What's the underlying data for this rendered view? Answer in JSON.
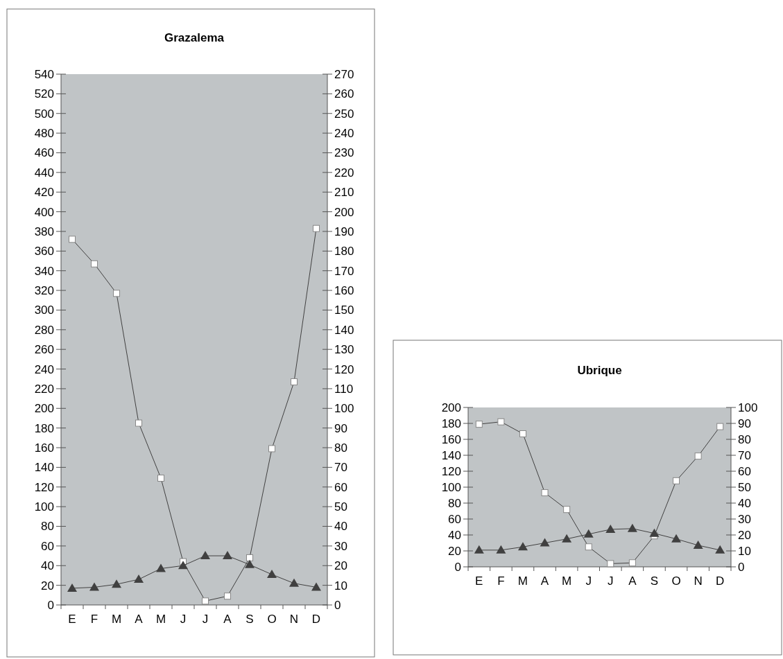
{
  "chart_data": [
    {
      "type": "line",
      "title": "Grazalema",
      "categories": [
        "E",
        "F",
        "M",
        "A",
        "M",
        "J",
        "J",
        "A",
        "S",
        "O",
        "N",
        "D"
      ],
      "series": [
        {
          "color": "#ffffff",
          "marker": "square",
          "values": [
            372,
            347,
            317,
            185,
            129,
            44,
            4,
            9,
            48,
            159,
            227,
            383
          ]
        },
        {
          "color": "#404040",
          "marker": "triangle",
          "axis": "y2",
          "values": [
            8.5,
            9,
            10.5,
            13,
            18.5,
            20,
            25,
            25,
            20.5,
            15.5,
            11,
            9
          ]
        }
      ],
      "ylim": [
        0,
        540
      ],
      "yticks": [
        0,
        20,
        40,
        60,
        80,
        100,
        120,
        140,
        160,
        180,
        200,
        220,
        240,
        260,
        280,
        300,
        320,
        340,
        360,
        380,
        400,
        420,
        440,
        460,
        480,
        500,
        520,
        540
      ],
      "y2lim": [
        0,
        270
      ],
      "y2ticks": [
        0,
        10,
        20,
        30,
        40,
        50,
        60,
        70,
        80,
        90,
        100,
        110,
        120,
        130,
        140,
        150,
        160,
        170,
        180,
        190,
        200,
        210,
        220,
        230,
        240,
        250,
        260,
        270
      ],
      "grid": false
    },
    {
      "type": "line",
      "title": "Ubrique",
      "categories": [
        "E",
        "F",
        "M",
        "A",
        "M",
        "J",
        "J",
        "A",
        "S",
        "O",
        "N",
        "D"
      ],
      "series": [
        {
          "color": "#ffffff",
          "marker": "square",
          "values": [
            179,
            182,
            167,
            93,
            72,
            25,
            4,
            5,
            39,
            108,
            139,
            176
          ]
        },
        {
          "color": "#404040",
          "marker": "triangle",
          "axis": "y2",
          "values": [
            10.5,
            10.5,
            12.5,
            15,
            17.5,
            20.5,
            23.5,
            24,
            21,
            17.5,
            13.5,
            10.5
          ]
        }
      ],
      "ylim": [
        0,
        200
      ],
      "yticks": [
        0,
        20,
        40,
        60,
        80,
        100,
        120,
        140,
        160,
        180,
        200
      ],
      "y2lim": [
        0,
        100
      ],
      "y2ticks": [
        0,
        10,
        20,
        30,
        40,
        50,
        60,
        70,
        80,
        90,
        100
      ],
      "grid": false
    }
  ]
}
